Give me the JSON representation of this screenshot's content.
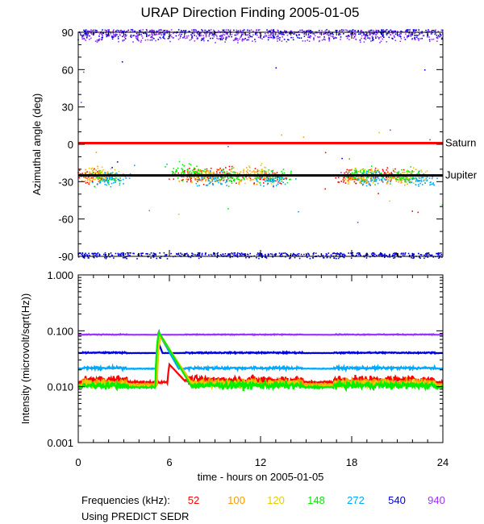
{
  "chart_data": [
    {
      "type": "scatter",
      "title": "URAP Direction Finding  2005-01-05",
      "ylabel": "Azimuthal angle (deg)",
      "xlim": [
        0,
        24
      ],
      "ylim": [
        -90,
        90
      ],
      "yticks": [
        90,
        60,
        30,
        0,
        -30,
        -60,
        -90
      ],
      "grid": false,
      "reference_lines": [
        {
          "name": "Saturn",
          "value": 1,
          "color": "#ff0000"
        },
        {
          "name": "Jupiter",
          "value": -25,
          "color": "#000000"
        }
      ],
      "series": [
        {
          "frequency_khz": "52",
          "color": "#ff0000",
          "clusters": [
            [
              0.8,
              -26
            ],
            [
              7.5,
              -25
            ],
            [
              9.5,
              -25
            ],
            [
              12.5,
              -27
            ],
            [
              18,
              -27
            ],
            [
              20,
              -25
            ]
          ]
        },
        {
          "frequency_khz": "100",
          "color": "#ff9900",
          "clusters": [
            [
              1.0,
              -25
            ],
            [
              8.0,
              -26
            ],
            [
              11,
              -25
            ],
            [
              18.5,
              -26
            ],
            [
              21,
              -27
            ]
          ]
        },
        {
          "frequency_khz": "120",
          "color": "#e6cc00",
          "clusters": [
            [
              1.5,
              -24
            ],
            [
              8.5,
              -25
            ],
            [
              12,
              -24
            ],
            [
              19,
              -25
            ],
            [
              22,
              -25
            ]
          ]
        },
        {
          "frequency_khz": "148",
          "color": "#00ee00",
          "clusters": [
            [
              2.0,
              -27
            ],
            [
              7.2,
              -22
            ],
            [
              10,
              -26
            ],
            [
              13,
              -26
            ],
            [
              18.8,
              -24
            ],
            [
              21.5,
              -26
            ]
          ]
        },
        {
          "frequency_khz": "272",
          "color": "#00a8ff",
          "clusters": [
            [
              2.2,
              -28
            ],
            [
              8.8,
              -28
            ],
            [
              12.8,
              -28
            ],
            [
              19.5,
              -27
            ],
            [
              22.5,
              -28
            ]
          ]
        },
        {
          "frequency_khz": "540",
          "color": "#0000dd",
          "bands": [
            [
              -92,
              -80
            ],
            [
              82,
              92
            ]
          ]
        },
        {
          "frequency_khz": "940",
          "color": "#9933ff",
          "bands": [
            [
              80,
              92
            ]
          ]
        }
      ]
    },
    {
      "type": "line",
      "ylabel": "Intensity (microvolt/sqrt(Hz))",
      "xlabel": "time - hours on 2005-01-05",
      "xlim": [
        0,
        24
      ],
      "ylim": [
        0.001,
        1.0
      ],
      "yscale": "log",
      "xticks": [
        0,
        6,
        12,
        18,
        24
      ],
      "yticks": [
        "1.000",
        "0.100",
        "0.010",
        "0.001"
      ],
      "grid": false,
      "series": [
        {
          "frequency_khz": "940",
          "color": "#9933ff",
          "baseline": 0.085,
          "noise": 0.03,
          "burst_peak": 0.1,
          "burst_decay": 0.8,
          "t_burst": 5.3
        },
        {
          "frequency_khz": "540",
          "color": "#0000dd",
          "baseline": 0.04,
          "noise": 0.05,
          "burst_peak": 0.06,
          "burst_decay": 1.0,
          "t_burst": 5.3
        },
        {
          "frequency_khz": "272",
          "color": "#00a8ff",
          "baseline": 0.021,
          "noise": 0.1,
          "burst_peak": 0.09,
          "burst_decay": 1.5,
          "t_burst": 5.3
        },
        {
          "frequency_khz": "52",
          "color": "#ff0000",
          "baseline": 0.012,
          "noise": 0.35,
          "burst_peak": 0.025,
          "burst_decay": 2.5,
          "t_burst": 6.0
        },
        {
          "frequency_khz": "100",
          "color": "#ff9900",
          "baseline": 0.011,
          "noise": 0.3,
          "burst_peak": 0.08,
          "burst_decay": 1.8,
          "t_burst": 5.4
        },
        {
          "frequency_khz": "120",
          "color": "#e6cc00",
          "baseline": 0.0105,
          "noise": 0.3,
          "burst_peak": 0.085,
          "burst_decay": 1.7,
          "t_burst": 5.4
        },
        {
          "frequency_khz": "148",
          "color": "#00ee00",
          "baseline": 0.0098,
          "noise": 0.3,
          "burst_peak": 0.095,
          "burst_decay": 1.6,
          "t_burst": 5.3
        }
      ]
    }
  ],
  "footer": {
    "frequencies_label": "Frequencies (kHz):",
    "frequencies": [
      {
        "label": "52",
        "color": "#ff0000"
      },
      {
        "label": "100",
        "color": "#ff9900"
      },
      {
        "label": "120",
        "color": "#e6cc00"
      },
      {
        "label": "148",
        "color": "#00ee00"
      },
      {
        "label": "272",
        "color": "#00a8ff"
      },
      {
        "label": "540",
        "color": "#0000dd"
      },
      {
        "label": "940",
        "color": "#9933ff"
      }
    ],
    "source_note": "Using PREDICT SEDR"
  }
}
